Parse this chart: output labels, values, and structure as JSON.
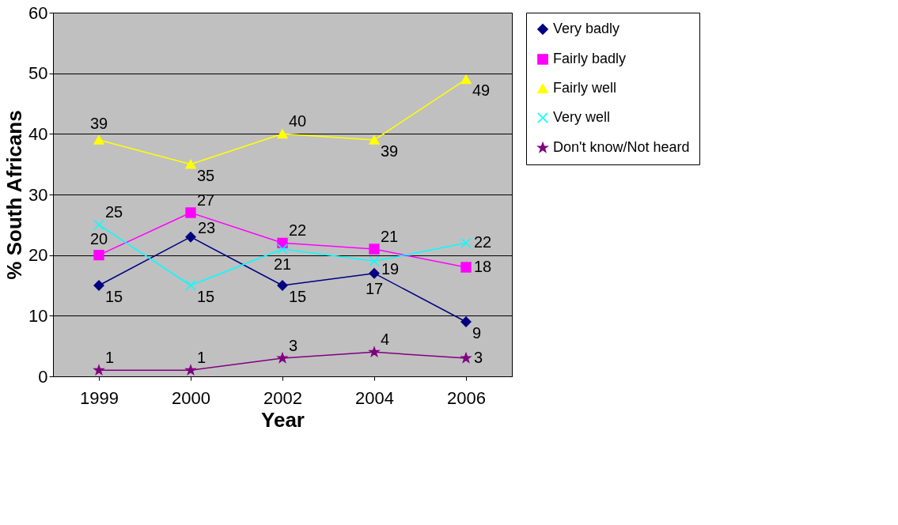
{
  "chart_data": {
    "type": "line",
    "xlabel": "Year",
    "ylabel": "% South Africans",
    "categories": [
      "1999",
      "2000",
      "2002",
      "2004",
      "2006"
    ],
    "series": [
      {
        "name": "Very badly",
        "color": "#000080",
        "marker": "diamond",
        "values": [
          15,
          23,
          15,
          17,
          9
        ]
      },
      {
        "name": "Fairly badly",
        "color": "#ff00ff",
        "marker": "square",
        "values": [
          20,
          27,
          22,
          21,
          18
        ]
      },
      {
        "name": "Fairly well",
        "color": "#ffff00",
        "marker": "triangle",
        "values": [
          39,
          35,
          40,
          39,
          49
        ]
      },
      {
        "name": "Very well",
        "color": "#00ffff",
        "marker": "cross",
        "values": [
          25,
          15,
          21,
          19,
          22
        ]
      },
      {
        "name": "Don't know/Not heard",
        "color": "#800080",
        "marker": "star",
        "values": [
          1,
          1,
          3,
          4,
          3
        ]
      }
    ],
    "ylim": [
      0,
      60
    ],
    "yticks": [
      0,
      10,
      20,
      30,
      40,
      50,
      60
    ],
    "grid": "y",
    "legend": "right",
    "data_labels": true,
    "line_style": "solid"
  }
}
